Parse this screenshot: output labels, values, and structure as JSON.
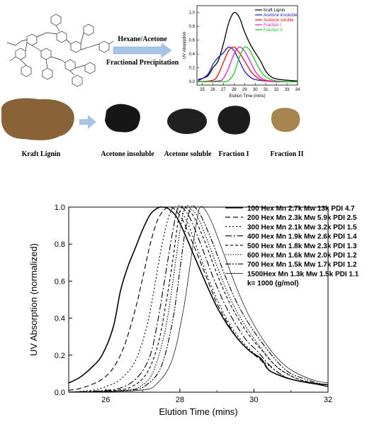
{
  "scheme": {
    "arrow_top_label": "Hexane/Acetone",
    "arrow_bottom_label": "Fractional  Precipitation"
  },
  "samples": [
    {
      "label": "Kraft Lignin",
      "color": "#8a6238"
    },
    {
      "label": "Acetone insoluble",
      "color": "#161616"
    },
    {
      "label": "Acetone soluble",
      "color": "#202020"
    },
    {
      "label": "Fraction I",
      "color": "#1c1c1c"
    },
    {
      "label": "Fraction II",
      "color": "#a8844f"
    }
  ],
  "chart_data": [
    {
      "type": "line",
      "xlabel": "Elution Time (mins)",
      "ylabel": "UV Absorption",
      "xlim": [
        24.5,
        34
      ],
      "ylim": [
        -0.05,
        1.1
      ],
      "xticks": [
        "25",
        "26",
        "27",
        "28",
        "29",
        "30",
        "31",
        "32",
        "33",
        "34"
      ],
      "yticks": [
        "0.0",
        "0.2",
        "0.4",
        "0.6",
        "0.8",
        "1.0"
      ],
      "legend_position": "top-right",
      "series": [
        {
          "name": "Kraft Lignin",
          "color": "#000000",
          "x": [
            24.6,
            25.5,
            26.0,
            26.5,
            27.0,
            27.5,
            28.0,
            28.5,
            29.0,
            29.5,
            30.0,
            30.5,
            31.0,
            31.5,
            32.0,
            33.0,
            34.0
          ],
          "y": [
            0.03,
            0.08,
            0.2,
            0.3,
            0.55,
            0.85,
            1.0,
            0.93,
            0.72,
            0.55,
            0.42,
            0.3,
            0.15,
            0.07,
            0.04,
            0.02,
            0.01
          ]
        },
        {
          "name": "Acetone insoluble",
          "color": "#1a1acc",
          "x": [
            24.6,
            25.5,
            26.0,
            26.5,
            27.0,
            27.5,
            28.0,
            28.5,
            29.0,
            29.5,
            30.0,
            31.0,
            32.0,
            33.0,
            34.0
          ],
          "y": [
            0.01,
            0.1,
            0.25,
            0.35,
            0.42,
            0.5,
            0.45,
            0.3,
            0.15,
            0.07,
            0.03,
            0.01,
            0.0,
            0.0,
            0.0
          ]
        },
        {
          "name": "Acetone soluble",
          "color": "#e01010",
          "x": [
            24.6,
            26.0,
            26.5,
            27.0,
            27.5,
            28.0,
            28.5,
            29.0,
            29.5,
            30.0,
            30.5,
            31.0,
            32.0,
            34.0
          ],
          "y": [
            0.0,
            0.02,
            0.1,
            0.28,
            0.45,
            0.5,
            0.42,
            0.3,
            0.17,
            0.08,
            0.03,
            0.01,
            0.0,
            0.0
          ]
        },
        {
          "name": "Fraction I",
          "color": "#e020c8",
          "x": [
            24.6,
            26.5,
            27.0,
            27.5,
            28.0,
            28.5,
            29.0,
            29.5,
            30.0,
            30.5,
            31.0,
            31.5,
            32.0,
            34.0
          ],
          "y": [
            0.0,
            0.01,
            0.05,
            0.2,
            0.4,
            0.5,
            0.44,
            0.3,
            0.15,
            0.06,
            0.02,
            0.01,
            0.0,
            0.0
          ]
        },
        {
          "name": "Fraction II",
          "color": "#18c818",
          "x": [
            24.6,
            27.0,
            27.5,
            28.0,
            28.5,
            29.0,
            29.5,
            30.0,
            30.5,
            31.0,
            31.5,
            32.0,
            33.0,
            34.0
          ],
          "y": [
            0.0,
            0.0,
            0.02,
            0.12,
            0.35,
            0.5,
            0.45,
            0.3,
            0.16,
            0.07,
            0.03,
            0.01,
            0.0,
            0.0
          ]
        }
      ]
    },
    {
      "type": "line",
      "xlabel": "Elution Time (mins)",
      "ylabel": "UV Absorption (normalized)",
      "xlim": [
        25,
        32
      ],
      "ylim": [
        0,
        1
      ],
      "xticks": [
        "26",
        "28",
        "30",
        "32"
      ],
      "yticks": [
        "0.0",
        "0.2",
        "0.4",
        "0.6",
        "0.8",
        "1.0"
      ],
      "legend_position": "top-right",
      "legend_note": "k= 1000 (g/mol)",
      "series": [
        {
          "name": "100  Hex Mn 2.7k Mw 13k  PDI 4.7",
          "color": "#000000",
          "dash": "",
          "width": 1.6,
          "x": [
            25.0,
            25.3,
            25.6,
            25.9,
            26.2,
            26.4,
            26.6,
            26.8,
            27.0,
            27.2,
            27.4,
            27.55,
            27.7,
            27.9,
            28.1,
            28.4,
            28.7,
            29.0,
            29.3,
            29.6,
            29.9,
            30.2,
            30.4,
            30.7,
            31.0,
            31.5,
            32.0
          ],
          "y": [
            0.05,
            0.08,
            0.13,
            0.2,
            0.35,
            0.55,
            0.68,
            0.78,
            0.88,
            0.96,
            0.995,
            1.0,
            0.99,
            0.95,
            0.87,
            0.73,
            0.59,
            0.46,
            0.36,
            0.28,
            0.22,
            0.18,
            0.12,
            0.09,
            0.07,
            0.05,
            0.04
          ]
        },
        {
          "name": "200  Hex Mn 2.3k Mw 5.9k PDI 2.5",
          "color": "#000000",
          "dash": "7,4",
          "width": 1.1,
          "x": [
            25.0,
            25.3,
            25.6,
            25.9,
            26.2,
            26.5,
            26.8,
            27.0,
            27.2,
            27.4,
            27.6,
            27.75,
            27.9,
            28.1,
            28.4,
            28.7,
            29.0,
            29.3,
            29.6,
            29.9,
            30.2,
            30.4,
            30.7,
            31.0,
            31.5,
            32.0
          ],
          "y": [
            0.01,
            0.02,
            0.04,
            0.07,
            0.13,
            0.25,
            0.45,
            0.62,
            0.8,
            0.93,
            0.99,
            1.0,
            0.98,
            0.92,
            0.78,
            0.63,
            0.48,
            0.37,
            0.28,
            0.22,
            0.17,
            0.12,
            0.09,
            0.07,
            0.05,
            0.04
          ]
        },
        {
          "name": "300  Hex Mn 2.1k Mw 3.2k PDI 1.5",
          "color": "#000000",
          "dash": "2,3",
          "width": 1.1,
          "x": [
            25.0,
            25.6,
            26.0,
            26.4,
            26.8,
            27.1,
            27.3,
            27.5,
            27.7,
            27.85,
            28.0,
            28.2,
            28.5,
            28.8,
            29.1,
            29.4,
            29.7,
            30.0,
            30.3,
            30.7,
            31.0,
            31.5,
            32.0
          ],
          "y": [
            0.0,
            0.01,
            0.03,
            0.07,
            0.17,
            0.35,
            0.55,
            0.78,
            0.95,
            1.0,
            0.98,
            0.92,
            0.76,
            0.6,
            0.46,
            0.35,
            0.27,
            0.21,
            0.16,
            0.1,
            0.07,
            0.05,
            0.03
          ]
        },
        {
          "name": "400  Hex Mn 1.9k Mw 2.6k PDI 1.4",
          "color": "#000000",
          "dash": "9,3,2,3",
          "width": 1.1,
          "x": [
            25.0,
            26.0,
            26.5,
            26.9,
            27.2,
            27.4,
            27.6,
            27.8,
            27.95,
            28.1,
            28.3,
            28.6,
            28.9,
            29.2,
            29.5,
            29.8,
            30.1,
            30.4,
            30.7,
            31.0,
            31.5,
            32.0
          ],
          "y": [
            0.0,
            0.01,
            0.03,
            0.09,
            0.2,
            0.38,
            0.62,
            0.86,
            1.0,
            0.99,
            0.93,
            0.78,
            0.62,
            0.48,
            0.37,
            0.28,
            0.22,
            0.15,
            0.1,
            0.07,
            0.05,
            0.03
          ]
        },
        {
          "name": "500  Hex Mn 1.8k Mw 2.3k PDI 1.3",
          "color": "#000000",
          "dash": "4,3",
          "width": 1.1,
          "x": [
            25.0,
            26.2,
            26.7,
            27.1,
            27.4,
            27.6,
            27.8,
            27.95,
            28.05,
            28.2,
            28.4,
            28.7,
            29.0,
            29.3,
            29.6,
            29.9,
            30.2,
            30.5,
            30.8,
            31.2,
            31.6,
            32.0
          ],
          "y": [
            0.0,
            0.01,
            0.03,
            0.1,
            0.25,
            0.45,
            0.7,
            0.92,
            1.0,
            0.99,
            0.94,
            0.8,
            0.64,
            0.5,
            0.39,
            0.3,
            0.23,
            0.16,
            0.11,
            0.07,
            0.05,
            0.03
          ]
        },
        {
          "name": "600  Hex Mn 1.6k Mw 2.0k PDI 1.2",
          "color": "#000000",
          "dash": "1.5,2",
          "width": 1.1,
          "x": [
            25.0,
            26.5,
            27.0,
            27.3,
            27.6,
            27.8,
            28.0,
            28.15,
            28.3,
            28.5,
            28.8,
            29.1,
            29.4,
            29.7,
            30.0,
            30.3,
            30.6,
            30.9,
            31.2,
            31.6,
            32.0
          ],
          "y": [
            0.0,
            0.01,
            0.04,
            0.12,
            0.33,
            0.58,
            0.87,
            1.0,
            0.99,
            0.94,
            0.79,
            0.63,
            0.49,
            0.38,
            0.29,
            0.21,
            0.14,
            0.1,
            0.07,
            0.05,
            0.03
          ]
        },
        {
          "name": "700  Hex Mn 1.5k Mw 1.7k PDI 1.2",
          "color": "#000000",
          "dash": "8,2,2,2,2,2",
          "width": 1.1,
          "x": [
            25.0,
            26.6,
            27.1,
            27.5,
            27.8,
            28.0,
            28.15,
            28.3,
            28.45,
            28.6,
            28.9,
            29.2,
            29.5,
            29.8,
            30.1,
            30.4,
            30.7,
            31.0,
            31.4,
            31.7,
            32.0
          ],
          "y": [
            0.0,
            0.01,
            0.04,
            0.14,
            0.38,
            0.66,
            0.88,
            1.0,
            0.99,
            0.94,
            0.8,
            0.64,
            0.5,
            0.39,
            0.3,
            0.22,
            0.15,
            0.1,
            0.07,
            0.05,
            0.04
          ]
        },
        {
          "name": "1500Hex Mn 1.3k Mw 1.5k PDI 1.1",
          "color": "#000000",
          "dash": "",
          "width": 0.7,
          "x": [
            25.0,
            26.9,
            27.4,
            27.8,
            28.1,
            28.3,
            28.45,
            28.55,
            28.7,
            28.9,
            29.2,
            29.5,
            29.8,
            30.1,
            30.4,
            30.7,
            31.0,
            31.4,
            31.7,
            32.0
          ],
          "y": [
            0.0,
            0.01,
            0.05,
            0.18,
            0.45,
            0.72,
            0.92,
            1.0,
            0.98,
            0.9,
            0.74,
            0.58,
            0.44,
            0.33,
            0.24,
            0.17,
            0.12,
            0.08,
            0.06,
            0.05
          ]
        }
      ]
    }
  ]
}
